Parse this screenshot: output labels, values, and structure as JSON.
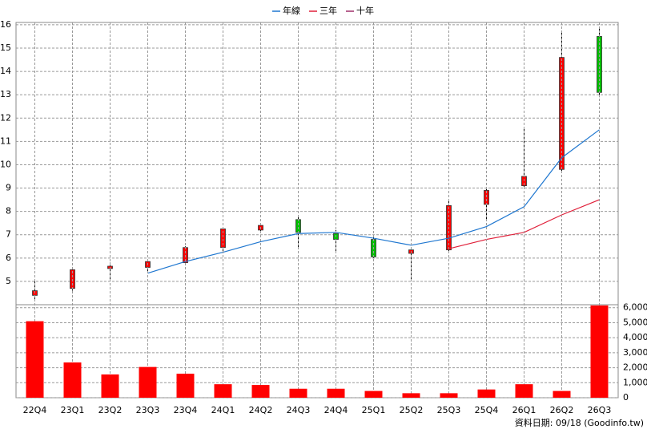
{
  "chart_data": [
    {
      "type": "candlestick",
      "open": [
        4.4,
        4.7,
        5.55,
        5.6,
        5.8,
        6.45,
        7.2,
        7.65,
        7.05,
        6.8,
        6.2,
        6.35,
        8.3,
        9.1,
        9.8,
        15.5
      ],
      "high": [
        5.1,
        5.5,
        5.8,
        5.9,
        6.5,
        7.3,
        7.45,
        7.75,
        7.2,
        6.95,
        6.35,
        8.5,
        8.95,
        11.6,
        15.7,
        15.9
      ],
      "low": [
        4.2,
        4.6,
        5.0,
        5.35,
        5.75,
        6.3,
        7.1,
        6.4,
        6.3,
        6.0,
        5.0,
        6.3,
        7.6,
        9.0,
        9.7,
        12.9
      ],
      "close": [
        4.6,
        5.5,
        5.65,
        5.85,
        6.45,
        7.25,
        7.4,
        7.1,
        6.8,
        6.05,
        6.35,
        8.25,
        8.9,
        9.5,
        14.6,
        13.1
      ],
      "up_color": "#ff0000",
      "down_color": "#00c000",
      "series": [
        {
          "name": "年線",
          "color": "#1f77d0",
          "values": [
            null,
            null,
            null,
            5.35,
            5.85,
            6.25,
            6.7,
            7.05,
            7.1,
            6.85,
            6.55,
            6.85,
            7.35,
            8.2,
            10.3,
            11.5
          ]
        },
        {
          "name": "三年",
          "color": "#e0203a",
          "values": [
            null,
            null,
            null,
            null,
            null,
            null,
            null,
            null,
            null,
            null,
            null,
            6.4,
            6.8,
            7.1,
            7.85,
            8.5
          ]
        },
        {
          "name": "十年",
          "color": "#a0306a",
          "values": [
            null,
            null,
            null,
            null,
            null,
            null,
            null,
            null,
            null,
            null,
            null,
            null,
            null,
            null,
            null,
            null
          ]
        }
      ],
      "ylim": [
        4,
        16.1
      ],
      "yticks": [
        5,
        6,
        7,
        8,
        9,
        10,
        11,
        12,
        13,
        14,
        15,
        16
      ],
      "grid": true
    },
    {
      "type": "bar",
      "categories": [
        "22Q4",
        "23Q1",
        "23Q2",
        "23Q3",
        "23Q4",
        "24Q1",
        "24Q2",
        "24Q3",
        "24Q4",
        "25Q1",
        "25Q2",
        "25Q3",
        "25Q4",
        "26Q1",
        "26Q2",
        "26Q3"
      ],
      "values": [
        5100,
        2350,
        1550,
        2050,
        1600,
        900,
        850,
        600,
        600,
        450,
        300,
        300,
        550,
        900,
        450,
        6150
      ],
      "color": "#ff0000",
      "ylim": [
        0,
        6200
      ],
      "yticks": [
        0,
        {
          "value": 1000,
          "label": "1,000"
        },
        {
          "value": 2000,
          "label": "2,000"
        },
        {
          "value": 3000,
          "label": "3,000"
        },
        {
          "value": 4000,
          "label": "4,000"
        },
        {
          "value": 5000,
          "label": "5,000"
        },
        {
          "value": 6000,
          "label": "6,000"
        }
      ],
      "grid": true,
      "annotation": "資料日期: 09/18  (Goodinfo.tw)"
    }
  ]
}
